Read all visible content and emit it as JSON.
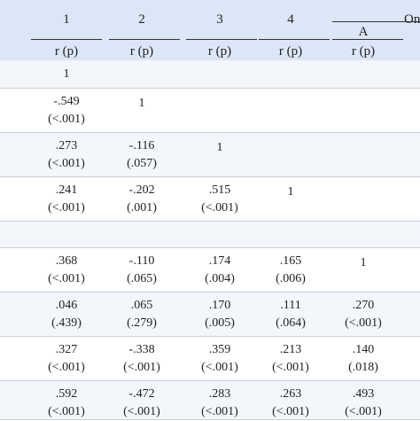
{
  "header": {
    "col_numbers": [
      "1",
      "2",
      "3",
      "4"
    ],
    "group_label": "On",
    "sub_label": "A",
    "stat_labels": [
      "r (p)",
      "r (p)",
      "r (p)",
      "r (p)",
      "r (p)"
    ]
  },
  "rows": [
    {
      "cells": [
        {
          "v": "1",
          "p": ""
        }
      ]
    },
    {
      "cells": [
        {
          "v": "-.549",
          "p": "(<.001)"
        },
        {
          "v": "1",
          "p": ""
        }
      ]
    },
    {
      "cells": [
        {
          "v": ".273",
          "p": "(<.001)"
        },
        {
          "v": "-.116",
          "p": "(.057)"
        },
        {
          "v": "1",
          "p": ""
        }
      ]
    },
    {
      "cells": [
        {
          "v": ".241",
          "p": "(<.001)"
        },
        {
          "v": "-.202",
          "p": "(.001)"
        },
        {
          "v": ".515",
          "p": "(<.001)"
        },
        {
          "v": "1",
          "p": ""
        }
      ]
    },
    {
      "cells": []
    },
    {
      "cells": [
        {
          "v": ".368",
          "p": "(<.001)"
        },
        {
          "v": "-.110",
          "p": "(.065)"
        },
        {
          "v": ".174",
          "p": "(.004)"
        },
        {
          "v": ".165",
          "p": "(.006)"
        },
        {
          "v": "1",
          "p": ""
        }
      ]
    },
    {
      "cells": [
        {
          "v": ".046",
          "p": "(.439)"
        },
        {
          "v": ".065",
          "p": "(.279)"
        },
        {
          "v": ".170",
          "p": "(.005)"
        },
        {
          "v": ".111",
          "p": "(.064)"
        },
        {
          "v": ".270",
          "p": "(<.001)"
        }
      ]
    },
    {
      "cells": [
        {
          "v": ".327",
          "p": "(<.001)"
        },
        {
          "v": "-.338",
          "p": "(<.001)"
        },
        {
          "v": ".359",
          "p": "(<.001)"
        },
        {
          "v": ".213",
          "p": "(<.001)"
        },
        {
          "v": ".140",
          "p": "(.018)"
        }
      ]
    },
    {
      "cells": [
        {
          "v": ".592",
          "p": "(<.001)"
        },
        {
          "v": "-.472",
          "p": "(<.001)"
        },
        {
          "v": ".283",
          "p": "(<.001)"
        },
        {
          "v": ".263",
          "p": "(<.001)"
        },
        {
          "v": ".493",
          "p": "(<.001)"
        }
      ]
    }
  ]
}
